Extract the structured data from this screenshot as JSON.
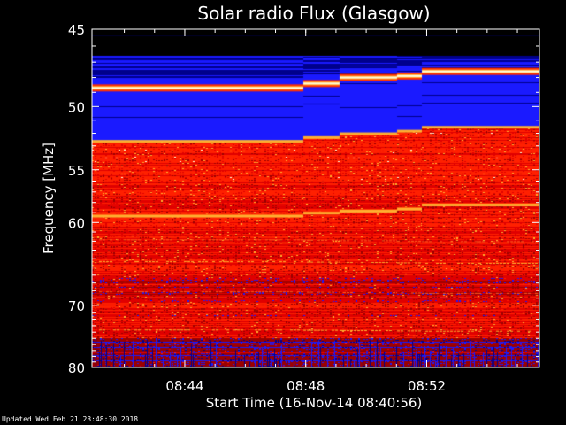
{
  "chart_data": {
    "type": "heatmap",
    "title": "Solar radio Flux (Glasgow)",
    "xlabel": "Start Time (16-Nov-14 08:40:56)",
    "ylabel": "Frequency [MHz]",
    "x_ticks": [
      "08:44",
      "08:48",
      "08:52"
    ],
    "x_tick_values_min": [
      3.07,
      7.07,
      11.07
    ],
    "x_range_min": [
      0,
      14.8
    ],
    "y_ticks": [
      45,
      50,
      55,
      60,
      70,
      80
    ],
    "y_scale": "reciprocal",
    "y_range_mhz": [
      45,
      80
    ],
    "colormap": [
      "#000000",
      "#00008c",
      "#1a1aff",
      "#9a0000",
      "#e00000",
      "#ff2000",
      "#ffb030",
      "#ffffe0"
    ],
    "segments_start_min": [
      0,
      7.0,
      8.2,
      10.1,
      10.9
    ],
    "bright_lane_mhz": [
      48.7,
      48.4,
      48.0,
      47.9,
      47.6
    ],
    "strong_lane_mhz": [
      59.3,
      59.0,
      58.8,
      58.6,
      58.2
    ],
    "band_edge_mhz": [
      52.6,
      52.3,
      52.0,
      51.8,
      51.5
    ]
  },
  "footer": "Updated Wed Feb 21 23:48:30 2018"
}
